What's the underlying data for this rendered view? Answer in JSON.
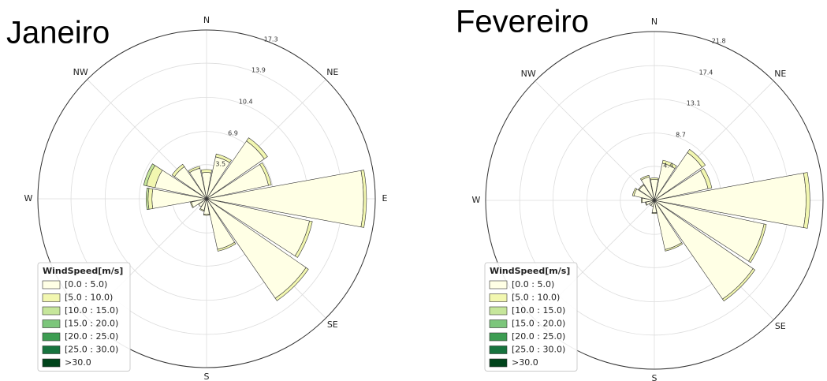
{
  "chart_data": [
    {
      "type": "windrose",
      "title": "Janeiro",
      "compass": [
        "N",
        "NE",
        "E",
        "SE",
        "S",
        null,
        "W",
        "NW"
      ],
      "rlim": [
        0,
        17.3
      ],
      "rticks": [
        3.5,
        6.9,
        10.4,
        13.9,
        17.3
      ],
      "grid": true,
      "legend_title": "WindSpeed[m/s]",
      "legend": "lower left",
      "series": [
        {
          "name": "[0.0 : 5.0)",
          "color": "#ffffe5",
          "values": [
            2.7,
            4.4,
            7.2,
            6.5,
            16.1,
            10.8,
            12.4,
            5.3,
            1.6,
            1.2,
            1.0,
            1.6,
            5.6,
            5.4,
            4.0,
            3.2
          ]
        },
        {
          "name": "[5.0 : 10.0)",
          "color": "#f2f7b0",
          "values": [
            0.3,
            0.3,
            0.4,
            0.3,
            0.3,
            0.3,
            0.3,
            0.2,
            0.1,
            0.1,
            0,
            0.1,
            0.4,
            0.9,
            0.3,
            0.2
          ]
        },
        {
          "name": "[10.0 : 15.0)",
          "color": "#c6e69b",
          "values": [
            0,
            0,
            0,
            0,
            0,
            0,
            0,
            0,
            0,
            0,
            0,
            0,
            0.2,
            0.3,
            0,
            0
          ]
        },
        {
          "name": "[15.0 : 20.0)",
          "color": "#7cc67b",
          "values": [
            0,
            0,
            0,
            0,
            0,
            0,
            0,
            0,
            0,
            0,
            0,
            0,
            0,
            0,
            0,
            0
          ]
        },
        {
          "name": "[20.0 : 25.0)",
          "color": "#3d9d52",
          "values": [
            0,
            0,
            0,
            0,
            0,
            0,
            0,
            0,
            0,
            0,
            0,
            0,
            0,
            0,
            0,
            0
          ]
        },
        {
          "name": "[25.0 : 30.0)",
          "color": "#17733e",
          "values": [
            0,
            0,
            0,
            0,
            0,
            0,
            0,
            0,
            0,
            0,
            0,
            0,
            0,
            0,
            0,
            0
          ]
        },
        {
          "name": ">30.0",
          "color": "#00441b",
          "values": [
            0,
            0,
            0,
            0,
            0,
            0,
            0,
            0,
            0,
            0,
            0,
            0,
            0,
            0,
            0,
            0
          ]
        }
      ]
    },
    {
      "type": "windrose",
      "title": "Fevereiro",
      "compass": [
        "N",
        "NE",
        null,
        "SE",
        "S",
        null,
        "W",
        "NW"
      ],
      "rlim": [
        0,
        21.8
      ],
      "rticks": [
        4.4,
        8.7,
        13.1,
        17.4,
        21.8
      ],
      "grid": true,
      "legend_title": "WindSpeed[m/s]",
      "legend": "lower left",
      "series": [
        {
          "name": "[0.0 : 5.0)",
          "color": "#ffffe5",
          "values": [
            2.7,
            4.9,
            7.5,
            7.1,
            19.6,
            14.5,
            15.5,
            6.5,
            1.6,
            0.8,
            0.8,
            1.1,
            1.6,
            2.7,
            2.4,
            3.1
          ]
        },
        {
          "name": "[5.0 : 10.0)",
          "color": "#f2f7b0",
          "values": [
            0.2,
            0.4,
            0.5,
            0.5,
            0.5,
            0.3,
            0.3,
            0.2,
            0.1,
            0,
            0,
            0.1,
            0.1,
            0.2,
            0.1,
            0.2
          ]
        },
        {
          "name": "[10.0 : 15.0)",
          "color": "#c6e69b",
          "values": [
            0,
            0,
            0,
            0,
            0,
            0,
            0,
            0,
            0,
            0,
            0,
            0,
            0,
            0,
            0,
            0
          ]
        },
        {
          "name": "[15.0 : 20.0)",
          "color": "#7cc67b",
          "values": [
            0,
            0,
            0,
            0,
            0,
            0,
            0,
            0,
            0,
            0,
            0,
            0,
            0,
            0,
            0,
            0
          ]
        },
        {
          "name": "[20.0 : 25.0)",
          "color": "#3d9d52",
          "values": [
            0,
            0,
            0,
            0,
            0,
            0,
            0,
            0,
            0,
            0,
            0,
            0,
            0,
            0,
            0,
            0
          ]
        },
        {
          "name": "[25.0 : 30.0)",
          "color": "#17733e",
          "values": [
            0,
            0,
            0,
            0,
            0,
            0,
            0,
            0,
            0,
            0,
            0,
            0,
            0,
            0,
            0,
            0
          ]
        },
        {
          "name": ">30.0",
          "color": "#00441b",
          "values": [
            0,
            0,
            0,
            0,
            0,
            0,
            0,
            0,
            0,
            0,
            0,
            0,
            0,
            0,
            0,
            0
          ]
        }
      ]
    }
  ]
}
